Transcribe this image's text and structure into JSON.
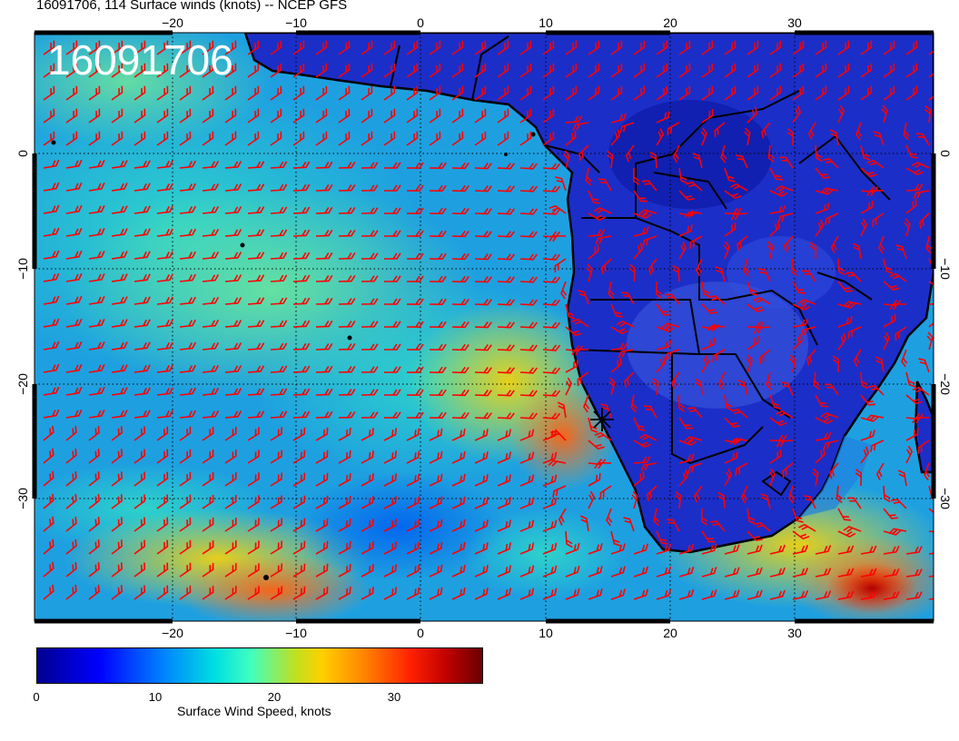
{
  "title": "16091706, 114 Surface winds (knots) -- NCEP GFS",
  "timestamp_label": "16091706",
  "lon_ticks": [
    "−20",
    "−10",
    "0",
    "10",
    "20",
    "30"
  ],
  "lat_ticks": [
    "0",
    "−10",
    "−20",
    "−30"
  ],
  "colorbar": {
    "label": "Surface Wind Speed, knots",
    "ticks": [
      "0",
      "10",
      "20",
      "30"
    ]
  },
  "colors": {
    "barb": "#ff0000",
    "coast": "#000000",
    "timestamp": "#ffffff"
  }
}
